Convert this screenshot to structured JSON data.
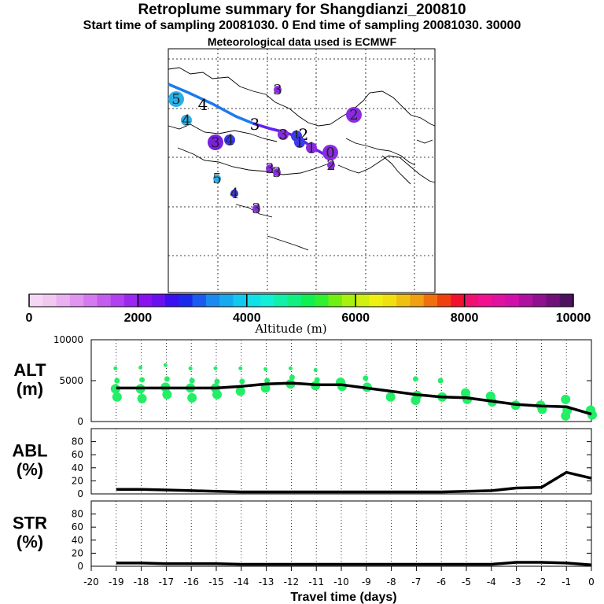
{
  "title": "Retroplume summary for Shangdianzi_200810",
  "subtitle": "Start time of sampling 20081030.    0     End time of sampling 20081030. 30000",
  "met_line": "Meteorological data used is ECMWF",
  "chart_data": [
    {
      "type": "scatter",
      "name": "map",
      "note": "plume centroid positions; labels are days before sampling",
      "points": [
        {
          "label": "5",
          "color": "#2ab0e8",
          "size": "large"
        },
        {
          "label": "4",
          "color": "#000000",
          "size": "text"
        },
        {
          "label": "4",
          "color": "#2ab0e8",
          "size": "medium"
        },
        {
          "label": "3",
          "color": "#8a2be2",
          "size": "small"
        },
        {
          "label": "2",
          "color": "#8a2be2",
          "size": "large"
        },
        {
          "label": "3",
          "color": "#7b1fe0",
          "size": "large"
        },
        {
          "label": "4",
          "color": "#3a3af0",
          "size": "medium"
        },
        {
          "label": "3",
          "color": "#000000",
          "size": "text"
        },
        {
          "label": "3",
          "color": "#8a2be2",
          "size": "medium"
        },
        {
          "label": "1",
          "color": "#3a3af0",
          "size": "medium"
        },
        {
          "label": "2",
          "color": "#000000",
          "size": "text"
        },
        {
          "label": "1",
          "color": "#3a3af0",
          "size": "medium"
        },
        {
          "label": "1",
          "color": "#8a2be2",
          "size": "medium"
        },
        {
          "label": "0",
          "color": "#8a2be2",
          "size": "large"
        },
        {
          "label": "2",
          "color": "#8a2be2",
          "size": "small"
        },
        {
          "label": "3",
          "color": "#8a2be2",
          "size": "small"
        },
        {
          "label": "3",
          "color": "#8a2be2",
          "size": "small"
        },
        {
          "label": "5",
          "color": "#2ab0e8",
          "size": "small"
        },
        {
          "label": "4",
          "color": "#3a3af0",
          "size": "small"
        },
        {
          "label": "3",
          "color": "#8a2be2",
          "size": "small"
        }
      ]
    },
    {
      "type": "colorbar",
      "name": "altitude",
      "label": "Altitude (m)",
      "range": [
        0,
        10000
      ],
      "ticks": [
        "0",
        "2000",
        "4000",
        "6000",
        "8000",
        "10000"
      ],
      "colors": [
        "#f5d7f5",
        "#f0c8f0",
        "#eab0f0",
        "#e095f0",
        "#d47af0",
        "#c45cf0",
        "#b040f0",
        "#9a28f0",
        "#8a10f0",
        "#6a10f0",
        "#3a10f0",
        "#1a2ae8",
        "#1a5af0",
        "#1a8af0",
        "#15aaf0",
        "#10c8f0",
        "#10e0e8",
        "#10f0d8",
        "#10f0a8",
        "#10f080",
        "#10f050",
        "#30f030",
        "#70f010",
        "#a8f010",
        "#d0f010",
        "#f0f010",
        "#f0e010",
        "#f0c010",
        "#f0a010",
        "#f07010",
        "#f04010",
        "#f01030",
        "#f01070",
        "#f01090",
        "#e010a0",
        "#d010a8",
        "#b010a0",
        "#901090",
        "#701078",
        "#501060"
      ]
    },
    {
      "type": "line",
      "name": "ALT",
      "ylabel": "ALT\n(m)",
      "ylim": [
        0,
        10000
      ],
      "yticks": [
        "10000",
        "5000",
        "0"
      ],
      "x": [
        -19,
        -18,
        -17,
        -16,
        -15,
        -14,
        -13,
        -12,
        -11,
        -10,
        -9,
        -8,
        -7,
        -6,
        -5,
        -4,
        -3,
        -2,
        -1,
        0
      ],
      "values": [
        4100,
        4100,
        4100,
        4100,
        4100,
        4300,
        4600,
        4700,
        4500,
        4500,
        4100,
        3700,
        3300,
        3000,
        2900,
        2500,
        2100,
        1900,
        1800,
        900
      ],
      "scatter": [
        {
          "x": -19,
          "y": [
            6500,
            5000,
            4000,
            3000
          ]
        },
        {
          "x": -18,
          "y": [
            6600,
            5100,
            4000,
            2800
          ]
        },
        {
          "x": -17,
          "y": [
            6900,
            5200,
            4200,
            3300
          ]
        },
        {
          "x": -16,
          "y": [
            6500,
            5000,
            4100,
            2900
          ]
        },
        {
          "x": -15,
          "y": [
            6500,
            4900,
            4100,
            3300
          ]
        },
        {
          "x": -14,
          "y": [
            6500,
            4900,
            3700
          ]
        },
        {
          "x": -13,
          "y": [
            6400,
            5000,
            4100
          ]
        },
        {
          "x": -12,
          "y": [
            6500,
            5400,
            4600
          ]
        },
        {
          "x": -11,
          "y": [
            6300,
            5100,
            4400
          ]
        },
        {
          "x": -10,
          "y": [
            4800,
            4300
          ]
        },
        {
          "x": -9,
          "y": [
            5300,
            4200
          ]
        },
        {
          "x": -8,
          "y": [
            3000
          ]
        },
        {
          "x": -7,
          "y": [
            5200,
            3200,
            2600
          ]
        },
        {
          "x": -6,
          "y": [
            5000,
            3000
          ]
        },
        {
          "x": -5,
          "y": [
            3500,
            2700
          ]
        },
        {
          "x": -4,
          "y": [
            3100,
            2400
          ]
        },
        {
          "x": -3,
          "y": [
            2000
          ]
        },
        {
          "x": -2,
          "y": [
            2000,
            1500
          ]
        },
        {
          "x": -1,
          "y": [
            2700,
            1400,
            700
          ]
        },
        {
          "x": 0,
          "y": [
            1400,
            800
          ]
        }
      ]
    },
    {
      "type": "line",
      "name": "ABL",
      "ylabel": "ABL\n(%)",
      "ylim": [
        0,
        100
      ],
      "yticks": [
        "80",
        "60",
        "40",
        "20",
        "0"
      ],
      "x": [
        -19,
        -18,
        -17,
        -16,
        -15,
        -14,
        -13,
        -12,
        -11,
        -10,
        -9,
        -8,
        -7,
        -6,
        -5,
        -4,
        -3,
        -2,
        -1,
        0
      ],
      "values": [
        7,
        7,
        6,
        5,
        4,
        3,
        3,
        3,
        3,
        3,
        3,
        3,
        3,
        3,
        4,
        5,
        9,
        10,
        33,
        24
      ]
    },
    {
      "type": "line",
      "name": "STR",
      "ylabel": "STR\n(%)",
      "ylim": [
        0,
        100
      ],
      "yticks": [
        "80",
        "60",
        "40",
        "20",
        "0"
      ],
      "x": [
        -19,
        -18,
        -17,
        -16,
        -15,
        -14,
        -13,
        -12,
        -11,
        -10,
        -9,
        -8,
        -7,
        -6,
        -5,
        -4,
        -3,
        -2,
        -1,
        0
      ],
      "values": [
        5,
        5,
        4,
        4,
        4,
        3,
        3,
        3,
        3,
        3,
        3,
        3,
        3,
        3,
        3,
        3,
        6,
        6,
        5,
        2
      ]
    },
    {
      "type": "axis",
      "name": "time_axis",
      "xlabel": "Travel time (days)",
      "ticks": [
        "-20",
        "-19",
        "-18",
        "-17",
        "-16",
        "-15",
        "-14",
        "-13",
        "-12",
        "-11",
        "-10",
        "-9",
        "-8",
        "-7",
        "-6",
        "-5",
        "-4",
        "-3",
        "-2",
        "-1",
        "0"
      ]
    }
  ]
}
